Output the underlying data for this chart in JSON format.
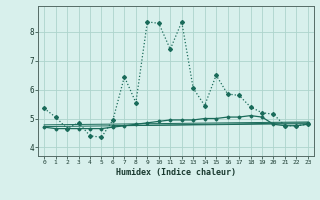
{
  "xlabel": "Humidex (Indice chaleur)",
  "x_ticks": [
    0,
    1,
    2,
    3,
    4,
    5,
    6,
    7,
    8,
    9,
    10,
    11,
    12,
    13,
    14,
    15,
    16,
    17,
    18,
    19,
    20,
    21,
    22,
    23
  ],
  "y_ticks": [
    4,
    5,
    6,
    7,
    8
  ],
  "ylim": [
    3.7,
    8.9
  ],
  "xlim": [
    -0.5,
    23.5
  ],
  "bg_color": "#d8f0ec",
  "line_color": "#1a6b5a",
  "grid_color": "#aed4cc",
  "series1_x": [
    0,
    1,
    2,
    3,
    4,
    5,
    6,
    7,
    8,
    9,
    10,
    11,
    12,
    13,
    14,
    15,
    16,
    17,
    18,
    19,
    20,
    21,
    22,
    23
  ],
  "series1_y": [
    5.35,
    5.05,
    4.65,
    4.85,
    4.4,
    4.35,
    4.95,
    6.45,
    5.55,
    8.35,
    8.3,
    7.4,
    8.35,
    6.05,
    5.45,
    6.5,
    5.85,
    5.8,
    5.4,
    5.2,
    5.15,
    4.75,
    4.75,
    4.8
  ],
  "series2_x": [
    0,
    1,
    2,
    3,
    4,
    5,
    6,
    7,
    8,
    9,
    10,
    11,
    12,
    13,
    14,
    15,
    16,
    17,
    18,
    19,
    20,
    21,
    22,
    23
  ],
  "series2_y": [
    4.7,
    4.65,
    4.65,
    4.65,
    4.65,
    4.65,
    4.7,
    4.75,
    4.8,
    4.85,
    4.9,
    4.95,
    4.95,
    4.95,
    5.0,
    5.0,
    5.05,
    5.05,
    5.1,
    5.05,
    4.8,
    4.75,
    4.75,
    4.8
  ],
  "series3_x": [
    0,
    23
  ],
  "series3_y": [
    4.72,
    4.82
  ],
  "series4_x": [
    0,
    23
  ],
  "series4_y": [
    4.78,
    4.88
  ],
  "series5_x": [
    6,
    23
  ],
  "series5_y": [
    4.75,
    4.85
  ]
}
